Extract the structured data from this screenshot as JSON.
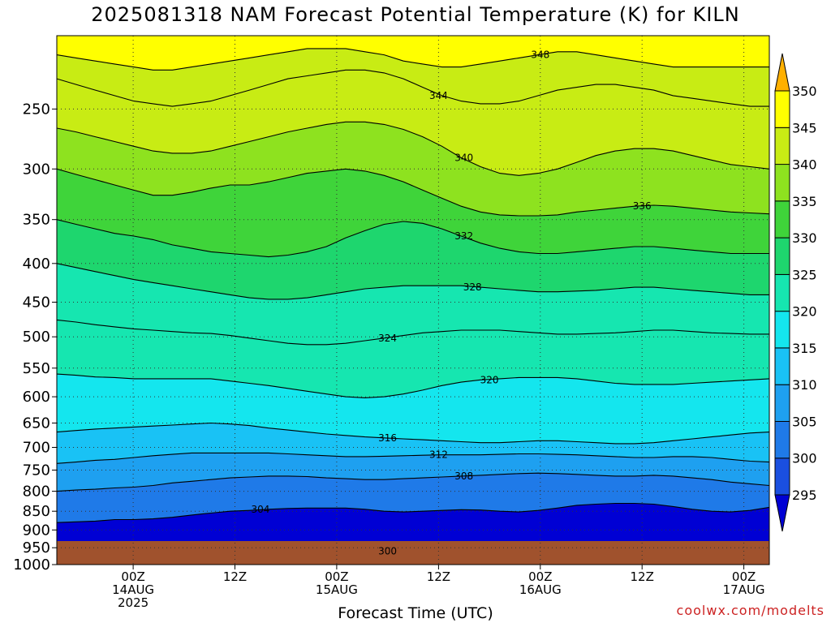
{
  "chart_data": {
    "type": "heatmap",
    "title": "2025081318 NAM Forecast Potential Temperature (K) for KILN",
    "xlabel": "Forecast Time (UTC)",
    "credit": "coolwx.com/modelts",
    "y_axis": {
      "scale": "log-pressure",
      "ylim": [
        1000,
        200
      ],
      "ticks": [
        250,
        300,
        350,
        400,
        450,
        500,
        550,
        600,
        650,
        700,
        750,
        800,
        850,
        900,
        950,
        1000
      ]
    },
    "x_axis": {
      "xlim_hours": [
        -3,
        81
      ],
      "ticks": [
        {
          "hour": 6,
          "lines": [
            "00Z",
            "14AUG",
            "2025"
          ]
        },
        {
          "hour": 18,
          "lines": [
            "12Z"
          ]
        },
        {
          "hour": 30,
          "lines": [
            "00Z",
            "15AUG"
          ]
        },
        {
          "hour": 42,
          "lines": [
            "12Z"
          ]
        },
        {
          "hour": 54,
          "lines": [
            "00Z",
            "16AUG"
          ]
        },
        {
          "hour": 66,
          "lines": [
            "12Z"
          ]
        },
        {
          "hour": 78,
          "lines": [
            "00Z",
            "17AUG"
          ]
        }
      ]
    },
    "colorbar": {
      "levels": [
        295,
        300,
        305,
        310,
        315,
        320,
        325,
        330,
        335,
        340,
        345,
        350
      ],
      "colors": [
        "#0000d4",
        "#1a4fe0",
        "#1f7ae8",
        "#1ea0f0",
        "#19c2f5",
        "#14e6ee",
        "#16e6b0",
        "#1ed66e",
        "#3fd43a",
        "#8ee21f",
        "#c8ec14",
        "#ffff00",
        "#ffb000"
      ]
    },
    "contours": [
      {
        "level": 300,
        "label": "300",
        "label_hour": 36,
        "p": []
      },
      {
        "level": 304,
        "label": "304",
        "label_hour": 21,
        "p": [
          880,
          878,
          876,
          872,
          872,
          870,
          866,
          860,
          855,
          850,
          848,
          845,
          843,
          842,
          842,
          842,
          845,
          850,
          852,
          850,
          848,
          846,
          847,
          850,
          852,
          848,
          842,
          835,
          832,
          830,
          830,
          832,
          838,
          845,
          850,
          852,
          848,
          840
        ]
      },
      {
        "level": 308,
        "label": "308",
        "label_hour": 45,
        "p": [
          800,
          797,
          795,
          792,
          790,
          786,
          780,
          776,
          772,
          768,
          766,
          764,
          764,
          765,
          768,
          770,
          772,
          772,
          770,
          768,
          766,
          764,
          762,
          760,
          758,
          757,
          758,
          760,
          762,
          764,
          764,
          762,
          764,
          768,
          772,
          778,
          782,
          786
        ]
      },
      {
        "level": 312,
        "label": "312",
        "label_hour": 42,
        "p": [
          735,
          732,
          728,
          726,
          722,
          718,
          715,
          712,
          712,
          712,
          712,
          712,
          714,
          716,
          718,
          720,
          720,
          719,
          718,
          717,
          716,
          716,
          716,
          715,
          714,
          714,
          715,
          716,
          718,
          720,
          722,
          722,
          720,
          720,
          722,
          726,
          730,
          732
        ]
      },
      {
        "level": 316,
        "label": "316",
        "label_hour": 36,
        "p": [
          668,
          665,
          662,
          660,
          658,
          656,
          654,
          652,
          650,
          652,
          655,
          660,
          664,
          668,
          672,
          675,
          678,
          680,
          682,
          684,
          686,
          688,
          690,
          690,
          688,
          686,
          686,
          688,
          690,
          692,
          692,
          690,
          686,
          682,
          678,
          674,
          670,
          668
        ]
      },
      {
        "level": 320,
        "label": "320",
        "label_hour": 48,
        "p": [
          560,
          562,
          565,
          566,
          568,
          568,
          568,
          568,
          568,
          572,
          576,
          580,
          585,
          590,
          595,
          600,
          602,
          600,
          595,
          588,
          580,
          574,
          570,
          568,
          566,
          566,
          566,
          568,
          572,
          576,
          578,
          578,
          578,
          576,
          574,
          572,
          570,
          568
        ]
      },
      {
        "level": 324,
        "label": "324",
        "label_hour": 36,
        "p": [
          475,
          478,
          482,
          485,
          488,
          490,
          492,
          494,
          495,
          498,
          502,
          506,
          510,
          512,
          512,
          510,
          506,
          502,
          498,
          494,
          492,
          490,
          490,
          490,
          492,
          494,
          496,
          496,
          495,
          494,
          492,
          490,
          490,
          492,
          494,
          495,
          496,
          496
        ]
      },
      {
        "level": 328,
        "label": "328",
        "label_hour": 46,
        "p": [
          400,
          405,
          410,
          415,
          420,
          424,
          428,
          432,
          436,
          440,
          444,
          446,
          446,
          444,
          440,
          436,
          432,
          430,
          428,
          428,
          428,
          428,
          430,
          432,
          434,
          436,
          436,
          435,
          434,
          432,
          430,
          430,
          432,
          434,
          436,
          438,
          440,
          440
        ]
      },
      {
        "level": 332,
        "label": "332",
        "label_hour": 45,
        "p": [
          350,
          355,
          360,
          365,
          368,
          372,
          378,
          382,
          386,
          388,
          390,
          392,
          390,
          386,
          380,
          370,
          362,
          355,
          352,
          354,
          360,
          368,
          376,
          382,
          386,
          388,
          388,
          386,
          384,
          382,
          380,
          380,
          382,
          384,
          386,
          388,
          388,
          388
        ]
      },
      {
        "level": 336,
        "label": "336",
        "label_hour": 66,
        "p": [
          300,
          305,
          310,
          315,
          320,
          325,
          325,
          322,
          318,
          315,
          315,
          312,
          308,
          304,
          302,
          300,
          302,
          306,
          312,
          320,
          328,
          336,
          342,
          345,
          346,
          346,
          345,
          342,
          340,
          338,
          336,
          335,
          336,
          338,
          340,
          342,
          343,
          344
        ]
      },
      {
        "level": 340,
        "label": "340",
        "label_hour": 45,
        "p": [
          265,
          268,
          272,
          276,
          280,
          284,
          286,
          286,
          284,
          280,
          276,
          272,
          268,
          265,
          262,
          260,
          260,
          262,
          266,
          272,
          280,
          290,
          298,
          304,
          306,
          304,
          300,
          294,
          288,
          284,
          282,
          282,
          284,
          288,
          292,
          296,
          298,
          300
        ]
      },
      {
        "level": 344,
        "label": "344",
        "label_hour": 42,
        "p": [
          228,
          232,
          236,
          240,
          244,
          246,
          248,
          246,
          244,
          240,
          236,
          232,
          228,
          226,
          224,
          222,
          222,
          224,
          228,
          234,
          240,
          244,
          246,
          246,
          244,
          240,
          236,
          234,
          232,
          232,
          234,
          236,
          240,
          242,
          244,
          246,
          248,
          248
        ]
      },
      {
        "level": 348,
        "label": "348",
        "label_hour": 54,
        "p": [
          212,
          214,
          216,
          218,
          220,
          222,
          222,
          220,
          218,
          216,
          214,
          212,
          210,
          208,
          208,
          208,
          210,
          212,
          216,
          218,
          220,
          220,
          218,
          216,
          214,
          212,
          210,
          210,
          212,
          214,
          216,
          218,
          220,
          220,
          220,
          220,
          220,
          220
        ]
      }
    ]
  }
}
